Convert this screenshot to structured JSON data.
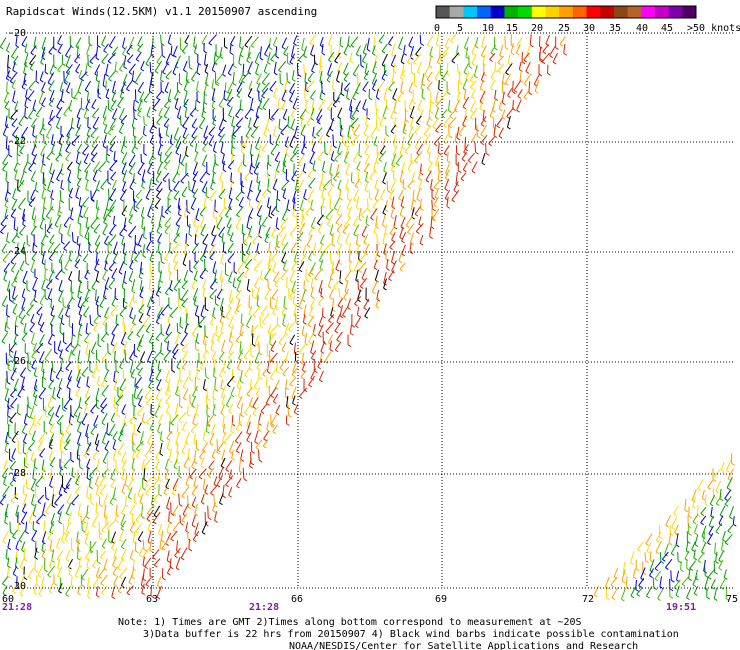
{
  "title": "Rapidscat Winds(12.5KM) v1.1 20150907 ascending",
  "scale": {
    "labels": [
      "0",
      "5",
      "10",
      "15",
      "20",
      "25",
      "30",
      "35",
      "40",
      "45",
      ">50 knots"
    ],
    "colors": [
      "#555555",
      "#a8a8a8",
      "#00c8ff",
      "#0064ff",
      "#0000c8",
      "#00b400",
      "#00dc00",
      "#ffff00",
      "#ffd200",
      "#ffa000",
      "#ff6400",
      "#ff0000",
      "#c80000",
      "#8c4614",
      "#b46428",
      "#ff00ff",
      "#c800c8",
      "#8200aa",
      "#500064"
    ]
  },
  "latitudes": [
    "-20",
    "-22",
    "-24",
    "-26",
    "-28",
    "-30"
  ],
  "longitudes": [
    "60",
    "63",
    "66",
    "69",
    "72",
    "75"
  ],
  "times": [
    "21:28",
    "21:28",
    "19:51"
  ],
  "notes": {
    "line1": "Note: 1) Times are GMT 2)Times along bottom correspond to measurement at ~20S",
    "line2": "3)Data buffer is 22 hrs from 20150907 4) Black wind barbs indicate possible contamination",
    "line3": "NOAA/NESDIS/Center for Satellite Applications and Research"
  },
  "swath_colors": {
    "blue": "#0000e0",
    "green": "#00a000",
    "lightgreen": "#40c000",
    "yellow": "#ffd800",
    "orange": "#ffa000",
    "red": "#e02000",
    "black": "#000000"
  }
}
